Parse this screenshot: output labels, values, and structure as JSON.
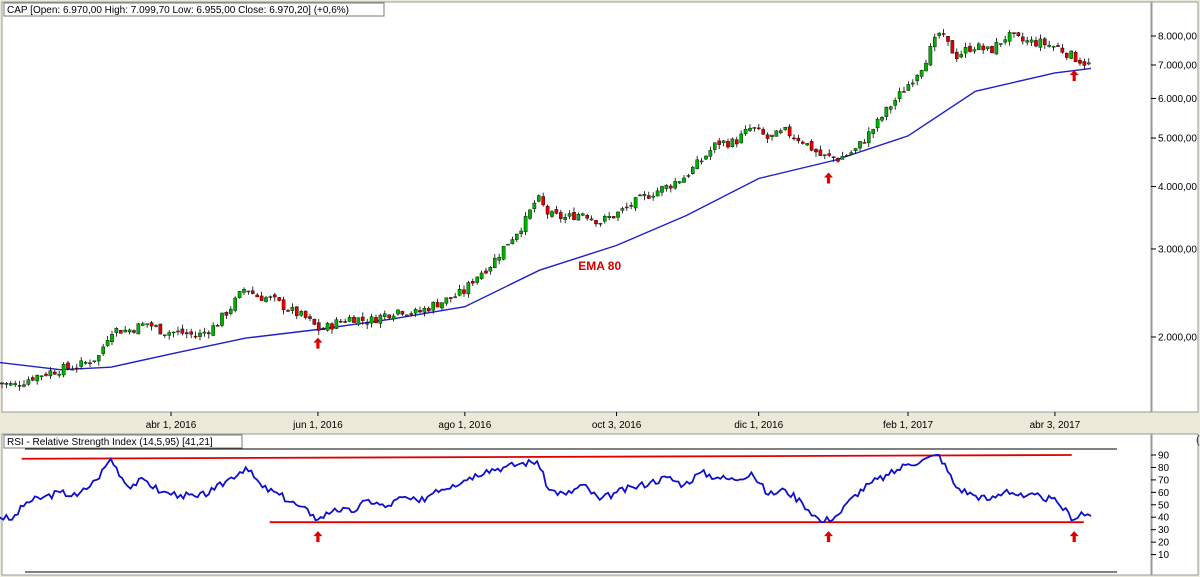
{
  "chart_data": [
    {
      "type": "candlestick",
      "title": "CAP [Open: 6.970,00  High: 7.099,70  Low: 6.955,00  Close: 6.970,20] (+0,6%)",
      "y_scale": "log",
      "ylim": [
        1550,
        8700
      ],
      "y_ticks": [
        {
          "value": 8000,
          "label": "8.000,00"
        },
        {
          "value": 7000,
          "label": "7.000,00"
        },
        {
          "value": 6000,
          "label": "6.000,00"
        },
        {
          "value": 5000,
          "label": "5.000,00"
        },
        {
          "value": 4000,
          "label": "4.000,00"
        },
        {
          "value": 3000,
          "label": "3.000,00"
        },
        {
          "value": 2000,
          "label": "2.000,00"
        }
      ],
      "x_ticks": [
        {
          "date": "2016-04-01",
          "label": "abr 1, 2016"
        },
        {
          "date": "2016-06-01",
          "label": "jun 1, 2016"
        },
        {
          "date": "2016-08-01",
          "label": "ago 1, 2016"
        },
        {
          "date": "2016-10-03",
          "label": "oct 3, 2016"
        },
        {
          "date": "2016-12-01",
          "label": "dic 1, 2016"
        },
        {
          "date": "2017-02-01",
          "label": "feb 1, 2017"
        },
        {
          "date": "2017-04-03",
          "label": "abr 3, 2017"
        }
      ],
      "price_path": [
        {
          "date": "2016-01-20",
          "value": 1620
        },
        {
          "date": "2016-01-27",
          "value": 1600
        },
        {
          "date": "2016-02-03",
          "value": 1660
        },
        {
          "date": "2016-02-10",
          "value": 1700
        },
        {
          "date": "2016-02-17",
          "value": 1730
        },
        {
          "date": "2016-02-24",
          "value": 1760
        },
        {
          "date": "2016-03-02",
          "value": 1830
        },
        {
          "date": "2016-03-07",
          "value": 2070
        },
        {
          "date": "2016-03-14",
          "value": 2060
        },
        {
          "date": "2016-03-22",
          "value": 2130
        },
        {
          "date": "2016-03-29",
          "value": 2050
        },
        {
          "date": "2016-04-05",
          "value": 2040
        },
        {
          "date": "2016-04-12",
          "value": 2010
        },
        {
          "date": "2016-04-19",
          "value": 2100
        },
        {
          "date": "2016-04-26",
          "value": 2300
        },
        {
          "date": "2016-05-02",
          "value": 2520
        },
        {
          "date": "2016-05-06",
          "value": 2420
        },
        {
          "date": "2016-05-13",
          "value": 2380
        },
        {
          "date": "2016-05-20",
          "value": 2270
        },
        {
          "date": "2016-05-27",
          "value": 2180
        },
        {
          "date": "2016-06-02",
          "value": 2060
        },
        {
          "date": "2016-06-08",
          "value": 2130
        },
        {
          "date": "2016-06-15",
          "value": 2190
        },
        {
          "date": "2016-06-22",
          "value": 2150
        },
        {
          "date": "2016-06-28",
          "value": 2210
        },
        {
          "date": "2016-07-05",
          "value": 2270
        },
        {
          "date": "2016-07-12",
          "value": 2230
        },
        {
          "date": "2016-07-19",
          "value": 2320
        },
        {
          "date": "2016-07-26",
          "value": 2390
        },
        {
          "date": "2016-08-01",
          "value": 2470
        },
        {
          "date": "2016-08-05",
          "value": 2630
        },
        {
          "date": "2016-08-12",
          "value": 2800
        },
        {
          "date": "2016-08-19",
          "value": 3100
        },
        {
          "date": "2016-08-26",
          "value": 3400
        },
        {
          "date": "2016-08-31",
          "value": 3800
        },
        {
          "date": "2016-09-05",
          "value": 3500
        },
        {
          "date": "2016-09-12",
          "value": 3460
        },
        {
          "date": "2016-09-19",
          "value": 3550
        },
        {
          "date": "2016-09-26",
          "value": 3400
        },
        {
          "date": "2016-10-03",
          "value": 3520
        },
        {
          "date": "2016-10-10",
          "value": 3700
        },
        {
          "date": "2016-10-17",
          "value": 3870
        },
        {
          "date": "2016-10-24",
          "value": 4000
        },
        {
          "date": "2016-10-31",
          "value": 4180
        },
        {
          "date": "2016-11-07",
          "value": 4500
        },
        {
          "date": "2016-11-14",
          "value": 4900
        },
        {
          "date": "2016-11-21",
          "value": 4900
        },
        {
          "date": "2016-11-28",
          "value": 5250
        },
        {
          "date": "2016-12-05",
          "value": 4980
        },
        {
          "date": "2016-12-12",
          "value": 5150
        },
        {
          "date": "2016-12-19",
          "value": 4950
        },
        {
          "date": "2016-12-27",
          "value": 4600
        },
        {
          "date": "2017-01-03",
          "value": 4550
        },
        {
          "date": "2017-01-10",
          "value": 4720
        },
        {
          "date": "2017-01-17",
          "value": 5180
        },
        {
          "date": "2017-01-24",
          "value": 5750
        },
        {
          "date": "2017-01-31",
          "value": 6300
        },
        {
          "date": "2017-02-07",
          "value": 7000
        },
        {
          "date": "2017-02-14",
          "value": 8100
        },
        {
          "date": "2017-02-21",
          "value": 7300
        },
        {
          "date": "2017-02-28",
          "value": 7650
        },
        {
          "date": "2017-03-07",
          "value": 7450
        },
        {
          "date": "2017-03-14",
          "value": 8000
        },
        {
          "date": "2017-03-21",
          "value": 7800
        },
        {
          "date": "2017-03-28",
          "value": 7750
        },
        {
          "date": "2017-04-04",
          "value": 7600
        },
        {
          "date": "2017-04-11",
          "value": 7250
        },
        {
          "date": "2017-04-18",
          "value": 6970
        }
      ],
      "ema80": [
        {
          "date": "2016-01-20",
          "value": 1780
        },
        {
          "date": "2016-02-15",
          "value": 1720
        },
        {
          "date": "2016-03-07",
          "value": 1740
        },
        {
          "date": "2016-04-01",
          "value": 1850
        },
        {
          "date": "2016-05-02",
          "value": 1990
        },
        {
          "date": "2016-06-01",
          "value": 2070
        },
        {
          "date": "2016-07-01",
          "value": 2170
        },
        {
          "date": "2016-08-01",
          "value": 2300
        },
        {
          "date": "2016-09-01",
          "value": 2720
        },
        {
          "date": "2016-10-03",
          "value": 3050
        },
        {
          "date": "2016-11-01",
          "value": 3500
        },
        {
          "date": "2016-12-01",
          "value": 4150
        },
        {
          "date": "2017-01-02",
          "value": 4520
        },
        {
          "date": "2017-02-01",
          "value": 5050
        },
        {
          "date": "2017-03-01",
          "value": 6200
        },
        {
          "date": "2017-04-03",
          "value": 6750
        },
        {
          "date": "2017-04-18",
          "value": 6890
        }
      ],
      "annotations": [
        {
          "text": "EMA 80",
          "date": "2016-09-26",
          "value": 2720,
          "color": "#D40000"
        }
      ],
      "signal_arrows": [
        {
          "date": "2016-06-01",
          "value": 1940
        },
        {
          "date": "2016-12-30",
          "value": 4150
        },
        {
          "date": "2017-04-11",
          "value": 6650
        }
      ]
    },
    {
      "type": "line",
      "title": "RSI - Relative Strength Index (14,5,95) [41,21]",
      "ylim": [
        0,
        100
      ],
      "y_ticks": [
        10,
        20,
        30,
        40,
        50,
        60,
        70,
        80,
        90
      ],
      "rsi": [
        {
          "date": "2016-01-20",
          "value": 41
        },
        {
          "date": "2016-01-26",
          "value": 38
        },
        {
          "date": "2016-02-01",
          "value": 52
        },
        {
          "date": "2016-02-08",
          "value": 56
        },
        {
          "date": "2016-02-15",
          "value": 60
        },
        {
          "date": "2016-02-22",
          "value": 57
        },
        {
          "date": "2016-03-01",
          "value": 70
        },
        {
          "date": "2016-03-07",
          "value": 87
        },
        {
          "date": "2016-03-14",
          "value": 65
        },
        {
          "date": "2016-03-21",
          "value": 70
        },
        {
          "date": "2016-03-28",
          "value": 60
        },
        {
          "date": "2016-04-05",
          "value": 58
        },
        {
          "date": "2016-04-12",
          "value": 56
        },
        {
          "date": "2016-04-19",
          "value": 62
        },
        {
          "date": "2016-04-26",
          "value": 72
        },
        {
          "date": "2016-05-02",
          "value": 80
        },
        {
          "date": "2016-05-09",
          "value": 64
        },
        {
          "date": "2016-05-16",
          "value": 58
        },
        {
          "date": "2016-05-23",
          "value": 50
        },
        {
          "date": "2016-05-30",
          "value": 42
        },
        {
          "date": "2016-06-01",
          "value": 38
        },
        {
          "date": "2016-06-08",
          "value": 47
        },
        {
          "date": "2016-06-15",
          "value": 44
        },
        {
          "date": "2016-06-22",
          "value": 54
        },
        {
          "date": "2016-06-29",
          "value": 48
        },
        {
          "date": "2016-07-06",
          "value": 56
        },
        {
          "date": "2016-07-13",
          "value": 52
        },
        {
          "date": "2016-07-20",
          "value": 62
        },
        {
          "date": "2016-07-27",
          "value": 66
        },
        {
          "date": "2016-08-03",
          "value": 72
        },
        {
          "date": "2016-08-10",
          "value": 78
        },
        {
          "date": "2016-08-17",
          "value": 80
        },
        {
          "date": "2016-08-24",
          "value": 83
        },
        {
          "date": "2016-08-31",
          "value": 85
        },
        {
          "date": "2016-09-05",
          "value": 62
        },
        {
          "date": "2016-09-12",
          "value": 58
        },
        {
          "date": "2016-09-19",
          "value": 66
        },
        {
          "date": "2016-09-26",
          "value": 54
        },
        {
          "date": "2016-10-03",
          "value": 60
        },
        {
          "date": "2016-10-10",
          "value": 64
        },
        {
          "date": "2016-10-17",
          "value": 68
        },
        {
          "date": "2016-10-24",
          "value": 72
        },
        {
          "date": "2016-10-31",
          "value": 66
        },
        {
          "date": "2016-11-07",
          "value": 76
        },
        {
          "date": "2016-11-14",
          "value": 72
        },
        {
          "date": "2016-11-21",
          "value": 70
        },
        {
          "date": "2016-11-28",
          "value": 76
        },
        {
          "date": "2016-12-05",
          "value": 58
        },
        {
          "date": "2016-12-12",
          "value": 62
        },
        {
          "date": "2016-12-19",
          "value": 52
        },
        {
          "date": "2016-12-27",
          "value": 36
        },
        {
          "date": "2017-01-03",
          "value": 42
        },
        {
          "date": "2017-01-10",
          "value": 58
        },
        {
          "date": "2017-01-17",
          "value": 68
        },
        {
          "date": "2017-01-24",
          "value": 74
        },
        {
          "date": "2017-01-31",
          "value": 82
        },
        {
          "date": "2017-02-07",
          "value": 86
        },
        {
          "date": "2017-02-14",
          "value": 90
        },
        {
          "date": "2017-02-21",
          "value": 64
        },
        {
          "date": "2017-02-28",
          "value": 58
        },
        {
          "date": "2017-03-07",
          "value": 54
        },
        {
          "date": "2017-03-14",
          "value": 62
        },
        {
          "date": "2017-03-21",
          "value": 56
        },
        {
          "date": "2017-03-28",
          "value": 57
        },
        {
          "date": "2017-04-04",
          "value": 52
        },
        {
          "date": "2017-04-11",
          "value": 38
        },
        {
          "date": "2017-04-14",
          "value": 44
        },
        {
          "date": "2017-04-18",
          "value": 41
        }
      ],
      "channel_lines": [
        {
          "from": {
            "date": "2016-01-30",
            "value": 87
          },
          "to": {
            "date": "2017-04-10",
            "value": 90
          }
        },
        {
          "from": {
            "date": "2016-05-12",
            "value": 36
          },
          "to": {
            "date": "2017-04-15",
            "value": 36
          }
        }
      ],
      "signal_arrows": [
        {
          "date": "2016-06-01",
          "value": 24
        },
        {
          "date": "2016-12-30",
          "value": 24
        },
        {
          "date": "2017-04-11",
          "value": 24
        }
      ]
    }
  ]
}
